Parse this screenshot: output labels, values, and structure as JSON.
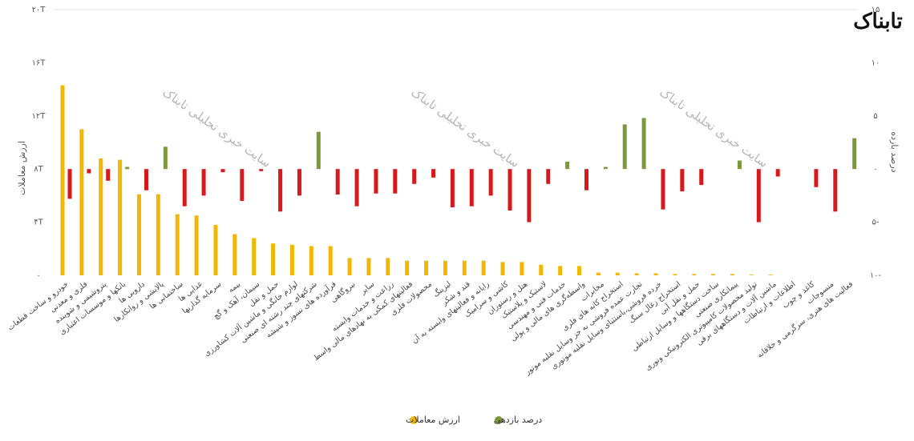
{
  "chart_data": {
    "type": "bar",
    "logo": "تابناک",
    "watermark": "سایت خبری تحلیلی تابناک",
    "ylabel": "ارزش معاملات",
    "y2label": "درصد بازده",
    "categories": [
      "خودرو و ساخت قطعات",
      "فلزی و معدنی",
      "پتروشیمی و شوینده",
      "بانکها و موسسات اعتباری",
      "دارویی ها",
      "پالایشی و روانکارها",
      "ساختمانی ها",
      "غذایی ها",
      "سرمایه گذاریها",
      "بیمه",
      "سیمان، آهک و گچ",
      "حمل و نقل",
      "لوازم خانگی و ماشین آلات کشاورزی",
      "شرکتهای چند رشته ای صنعتی",
      "فرآورده های نسوز و شیشه",
      "نیروگاهی",
      "سایر",
      "زراعت و خدمات وابسته",
      "فعالیتهای کمکی به نهادهای مالی واسط",
      "محصولات فلزی",
      "لیزینگ",
      "قند و شکر",
      "رایانه و فعالیتهای وابسته به آن",
      "کاشی و سرامیک",
      "هتل و رستوران",
      "لاستیک و پلاستیک",
      "خدمات فنی و مهندسی",
      "واسطه‌گری های مالی و پولی",
      "مخابرات",
      "استخراج کانه های فلزی",
      "تجارت عمده فروشی به جز وسایل نقلیه موتور",
      "خرده فروشی،باستثنای وسایل نقلیه موتوری",
      "استخراج زغال سنگ",
      "حمل و نقل آبی",
      "ساخت دستگاهها و وسایل ارتباطی",
      "پیمانکاری صنعتی",
      "تولید محصولات کامپیوتری الکترونیکی ونوری",
      "ماشین آلات و دستگاههای برقی",
      "اطلاعات و ارتباطات",
      "کاغذ و چوب",
      "منسوجات",
      "فعالیت های هنری، سرگرمی و خلاقانه"
    ],
    "series": [
      {
        "name": "ارزش معاملات",
        "color": "#f2b705",
        "values": [
          14.3,
          11.0,
          8.8,
          8.7,
          6.1,
          6.1,
          4.6,
          4.5,
          3.8,
          3.1,
          2.8,
          2.4,
          2.3,
          2.2,
          2.2,
          1.3,
          1.3,
          1.3,
          1.1,
          1.1,
          1.1,
          1.1,
          1.1,
          1.0,
          1.0,
          0.8,
          0.7,
          0.7,
          0.2,
          0.2,
          0.15,
          0.15,
          0.1,
          0.1,
          0.1,
          0.1,
          0.05,
          0.05,
          0,
          0,
          0,
          0
        ]
      },
      {
        "name": "درصد بازدهی",
        "color": "#7a9a3a",
        "negative_color": "#d7191c",
        "axis": "y2",
        "values": [
          -2.8,
          -0.4,
          -1.1,
          0.2,
          -2.0,
          2.1,
          -3.5,
          -2.5,
          -0.3,
          -3.0,
          -0.2,
          -4.0,
          -2.5,
          3.5,
          -2.4,
          -3.5,
          -2.3,
          -2.3,
          -1.4,
          -0.8,
          -3.6,
          -3.5,
          -2.5,
          -3.9,
          -5.0,
          -1.4,
          0.7,
          -2.0,
          0.2,
          4.2,
          4.8,
          -3.8,
          -2.1,
          -1.5,
          0,
          0.8,
          -5.0,
          -0.7,
          0,
          -1.7,
          -4.0,
          2.9
        ]
      }
    ],
    "ylim": [
      0,
      20
    ],
    "yticks": [
      {
        "value": 0,
        "label": "۰"
      },
      {
        "value": 4,
        "label": "۴T"
      },
      {
        "value": 8,
        "label": "۸T"
      },
      {
        "value": 12,
        "label": "۱۲T"
      },
      {
        "value": 16,
        "label": "۱۶T"
      },
      {
        "value": 20,
        "label": "۲۰T"
      }
    ],
    "y2lim": [
      -10,
      15
    ],
    "y2ticks": [
      {
        "value": -10,
        "label": "۱۰-"
      },
      {
        "value": -5,
        "label": "۵-"
      },
      {
        "value": 0,
        "label": "۰"
      },
      {
        "value": 5,
        "label": "۵"
      },
      {
        "value": 10,
        "label": "۱۰"
      },
      {
        "value": 15,
        "label": "۱۵"
      }
    ]
  }
}
